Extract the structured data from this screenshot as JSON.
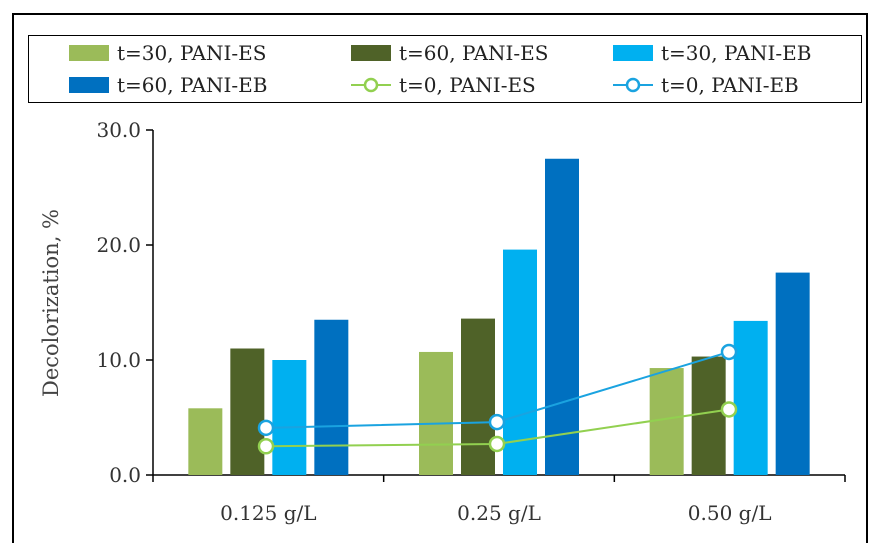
{
  "chart_data": {
    "type": "bar",
    "title": "",
    "xlabel": "",
    "ylabel": "Decolorization, %",
    "ylim": [
      0,
      30
    ],
    "yticks": [
      "0.0",
      "10.0",
      "20.0",
      "30.0"
    ],
    "categories": [
      "0.125 g/L",
      "0.25 g/L",
      "0.50 g/L"
    ],
    "series": [
      {
        "name": "t=30, PANI-ES",
        "kind": "bar",
        "color": "#9bbb59",
        "values": [
          5.8,
          10.7,
          9.3
        ]
      },
      {
        "name": "t=60, PANI-ES",
        "kind": "bar",
        "color": "#4f6228",
        "values": [
          11.0,
          13.6,
          10.3
        ]
      },
      {
        "name": "t=30, PANI-EB",
        "kind": "bar",
        "color": "#00b0f0",
        "values": [
          10.0,
          19.6,
          13.4
        ]
      },
      {
        "name": "t=60, PANI-EB",
        "kind": "bar",
        "color": "#0070c0",
        "values": [
          13.5,
          27.5,
          17.6
        ]
      },
      {
        "name": "t=0, PANI-ES",
        "kind": "line",
        "color": "#92d050",
        "values": [
          2.5,
          2.7,
          5.7
        ]
      },
      {
        "name": "t=0, PANI-EB",
        "kind": "line",
        "color": "#1aa3e0",
        "values": [
          4.1,
          4.6,
          10.7
        ]
      }
    ],
    "grid": false,
    "legend": "top"
  }
}
